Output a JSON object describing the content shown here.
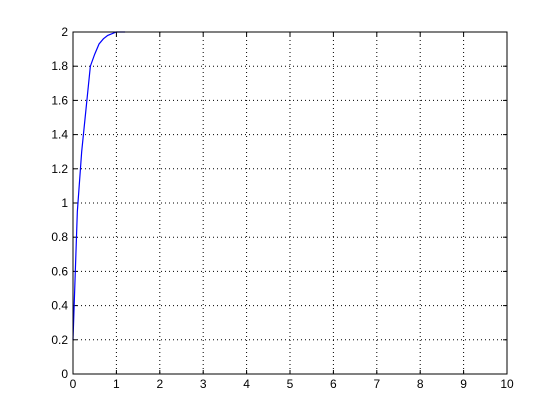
{
  "chart_data": {
    "type": "line",
    "title": "",
    "xlabel": "",
    "ylabel": "",
    "xlim": [
      0,
      10
    ],
    "ylim": [
      0,
      2
    ],
    "xticks": [
      0,
      1,
      2,
      3,
      4,
      5,
      6,
      7,
      8,
      9,
      10
    ],
    "yticks": [
      0,
      0.2,
      0.4,
      0.6,
      0.8,
      1,
      1.2,
      1.4,
      1.6,
      1.8,
      2
    ],
    "grid": true,
    "legend": "none",
    "series": [
      {
        "color": "#0000ff",
        "x": [
          0,
          0.1,
          0.2,
          0.3,
          0.4,
          0.5,
          0.6,
          0.7,
          0.8,
          0.9,
          1.0,
          1.1,
          1.2
        ],
        "y": [
          0.2,
          0.95,
          1.3,
          1.55,
          1.8,
          1.87,
          1.93,
          1.96,
          1.98,
          1.99,
          2.0,
          2.0,
          2.0
        ]
      }
    ]
  }
}
